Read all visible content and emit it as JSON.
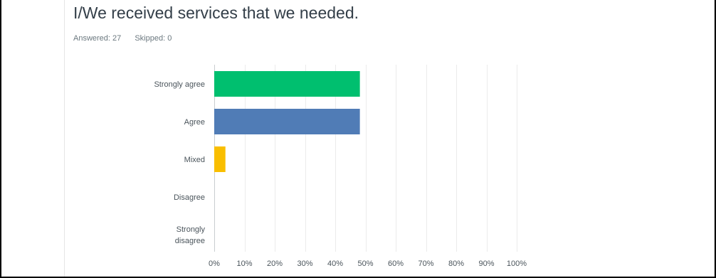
{
  "question": {
    "title": "I/We received services that we needed.",
    "answered_label": "Answered: 27",
    "skipped_label": "Skipped: 0"
  },
  "chart_data": {
    "type": "bar",
    "orientation": "horizontal",
    "categories": [
      [
        "Strongly agree"
      ],
      [
        "Agree"
      ],
      [
        "Mixed"
      ],
      [
        "Disagree"
      ],
      [
        "Strongly",
        "disagree"
      ]
    ],
    "values": [
      48.15,
      48.15,
      3.7,
      0,
      0
    ],
    "colors": [
      "#00bf6f",
      "#507cb6",
      "#f9be00",
      "#6bc8cd",
      "#ff8b4f"
    ],
    "xlim": [
      0,
      100
    ],
    "xticks": [
      0,
      10,
      20,
      30,
      40,
      50,
      60,
      70,
      80,
      90,
      100
    ],
    "tick_labels": [
      "0%",
      "10%",
      "20%",
      "30%",
      "40%",
      "50%",
      "60%",
      "70%",
      "80%",
      "90%",
      "100%"
    ],
    "grid": true
  }
}
